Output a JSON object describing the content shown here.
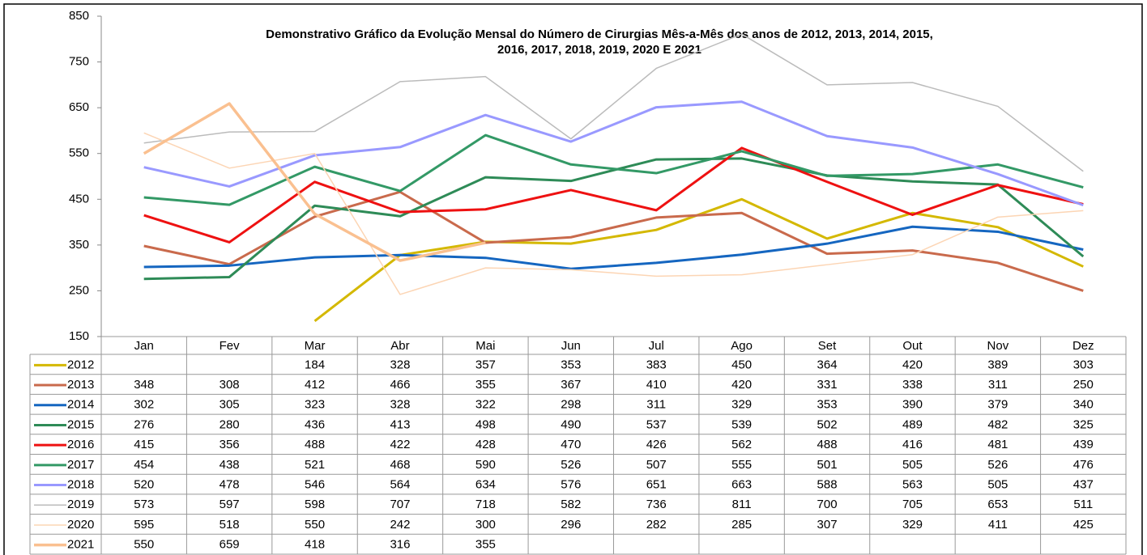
{
  "chart_data": {
    "type": "line",
    "title": [
      "Demonstrativo Gráfico da Evolução Mensal do Número de Cirurgias Mês-a-Mês dos anos de  2012, 2013, 2014, 2015,",
      "2016, 2017, 2018, 2019, 2020 E 2021"
    ],
    "categories": [
      "Jan",
      "Fev",
      "Mar",
      "Abr",
      "Mai",
      "Jun",
      "Jul",
      "Ago",
      "Set",
      "Out",
      "Nov",
      "Dez"
    ],
    "ylim": [
      150,
      850
    ],
    "yticks": [
      150,
      250,
      350,
      450,
      550,
      650,
      750,
      850
    ],
    "grid": false,
    "series": [
      {
        "name": "2012",
        "color": "#d4b800",
        "line_width": 3,
        "values": [
          null,
          null,
          184,
          328,
          357,
          353,
          383,
          450,
          364,
          420,
          389,
          303
        ]
      },
      {
        "name": "2013",
        "color": "#c96a4c",
        "line_width": 3,
        "values": [
          348,
          308,
          412,
          466,
          355,
          367,
          410,
          420,
          331,
          338,
          311,
          250
        ]
      },
      {
        "name": "2014",
        "color": "#1566c0",
        "line_width": 3,
        "values": [
          302,
          305,
          323,
          328,
          322,
          298,
          311,
          329,
          353,
          390,
          379,
          340
        ]
      },
      {
        "name": "2015",
        "color": "#2e8b57",
        "line_width": 3,
        "values": [
          276,
          280,
          436,
          413,
          498,
          490,
          537,
          539,
          502,
          489,
          482,
          325
        ]
      },
      {
        "name": "2016",
        "color": "#ee1111",
        "line_width": 3,
        "values": [
          415,
          356,
          488,
          422,
          428,
          470,
          426,
          562,
          488,
          416,
          481,
          439
        ]
      },
      {
        "name": "2017",
        "color": "#339966",
        "line_width": 3,
        "values": [
          454,
          438,
          521,
          468,
          590,
          526,
          507,
          555,
          501,
          505,
          526,
          476
        ]
      },
      {
        "name": "2018",
        "color": "#9999ff",
        "line_width": 3,
        "values": [
          520,
          478,
          546,
          564,
          634,
          576,
          651,
          663,
          588,
          563,
          505,
          437
        ]
      },
      {
        "name": "2019",
        "color": "#bbbbbb",
        "line_width": 1.5,
        "values": [
          573,
          597,
          598,
          707,
          718,
          582,
          736,
          811,
          700,
          705,
          653,
          511
        ]
      },
      {
        "name": "2020",
        "color": "#fcd5b4",
        "line_width": 1.5,
        "values": [
          595,
          518,
          550,
          242,
          300,
          296,
          282,
          285,
          307,
          329,
          411,
          425
        ]
      },
      {
        "name": "2021",
        "color": "#fac090",
        "line_width": 3.5,
        "values": [
          550,
          659,
          418,
          316,
          355,
          null,
          null,
          null,
          null,
          null,
          null,
          null
        ]
      }
    ]
  }
}
